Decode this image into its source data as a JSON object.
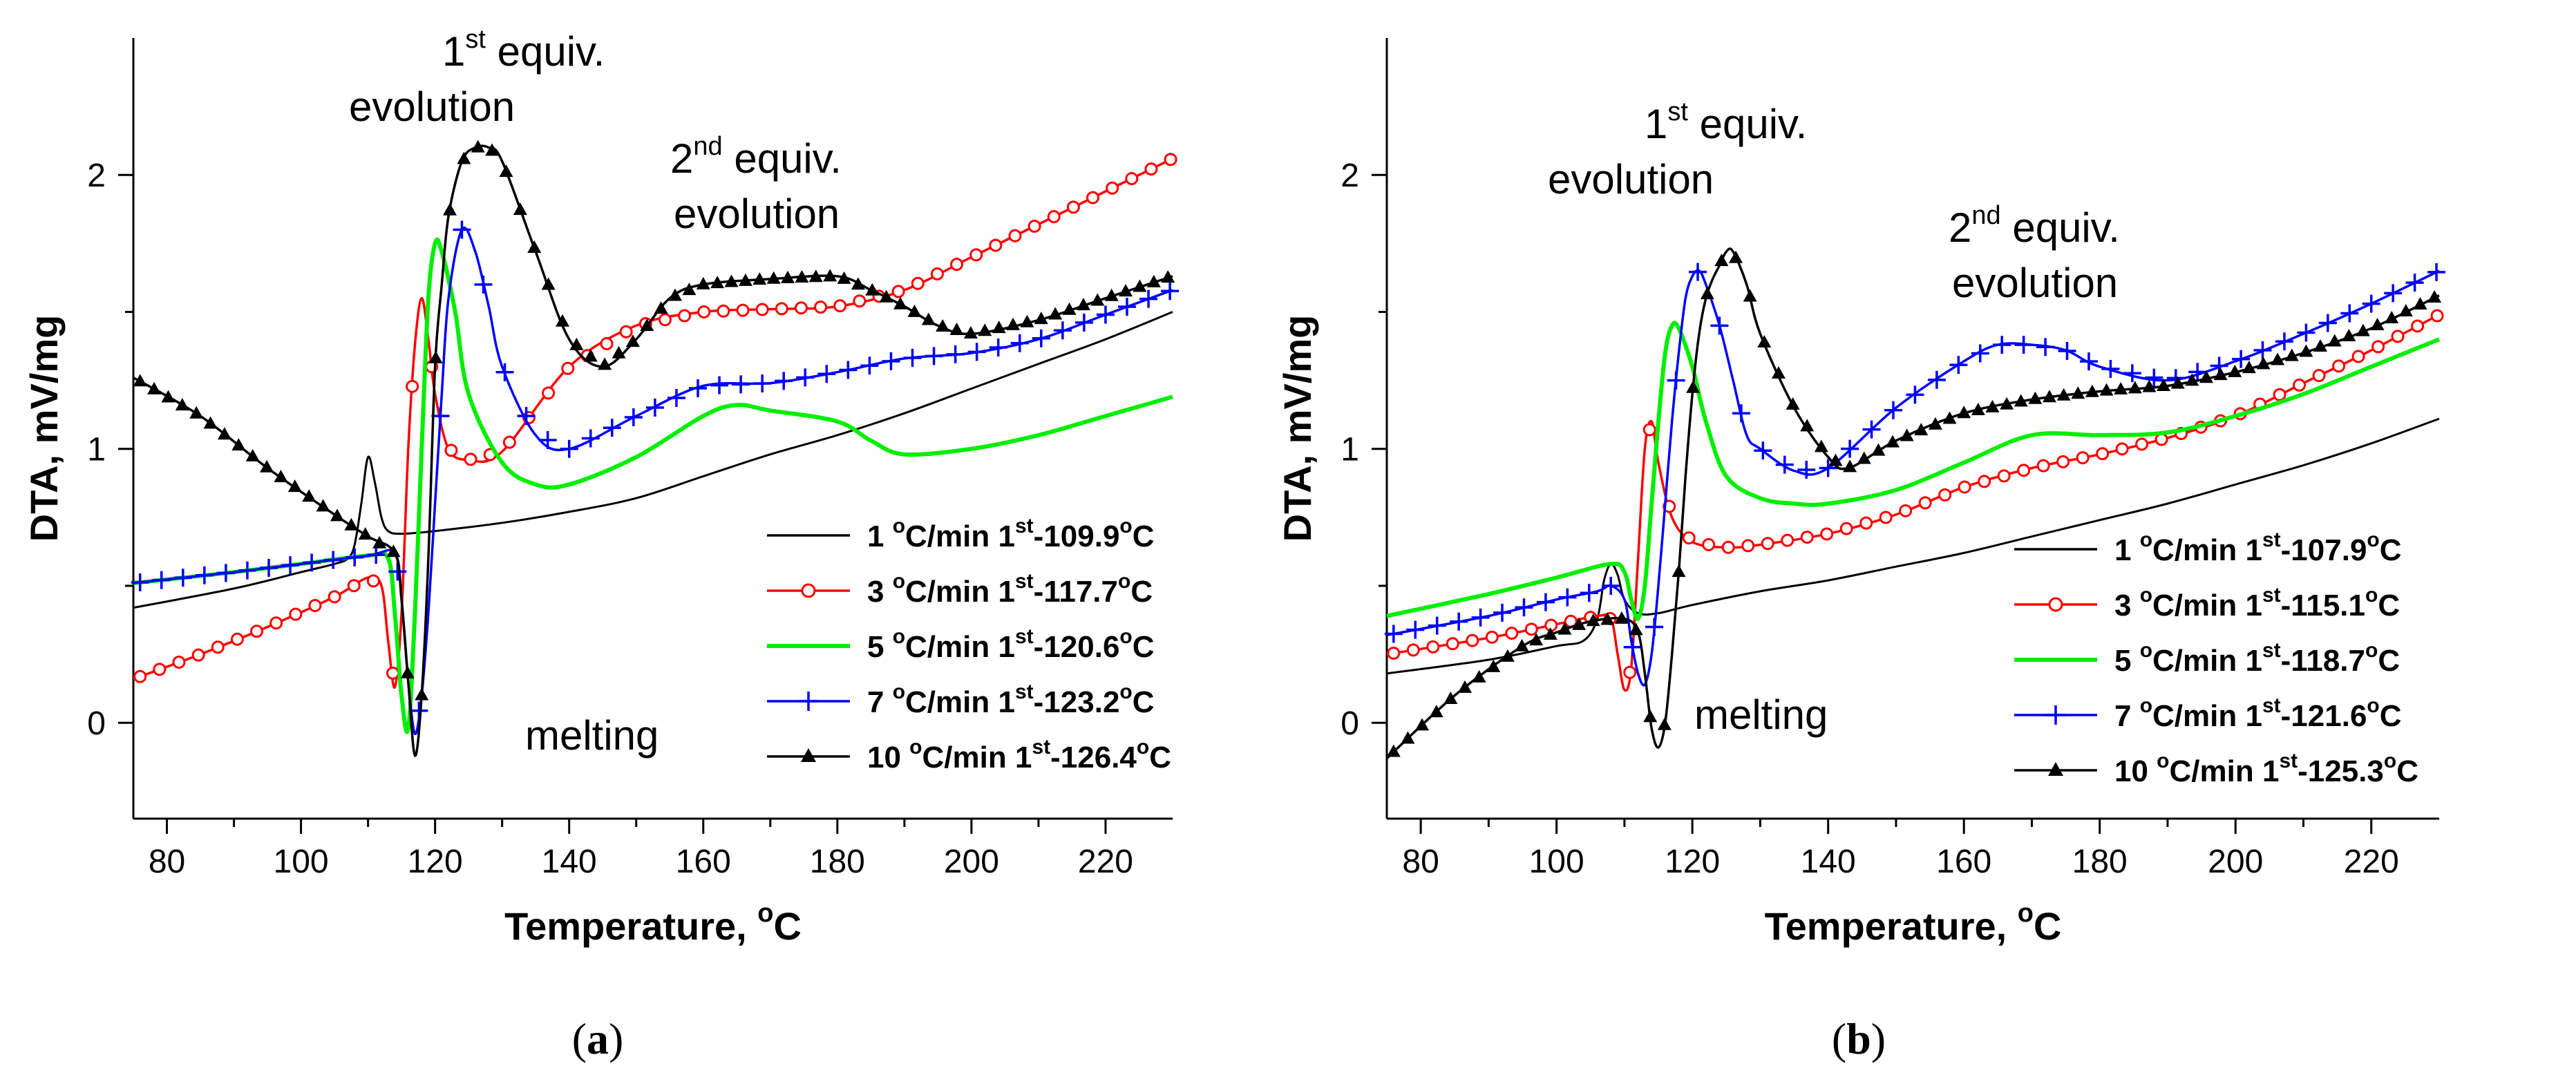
{
  "chart_data": [
    {
      "type": "line",
      "panel_label": "a",
      "xlabel": "Temperature, ",
      "xlabel_unit": "C",
      "ylabel": "DTA, mV/mg",
      "xlim": [
        75,
        230
      ],
      "ylim": [
        -0.35,
        2.5
      ],
      "xticks": [
        "80",
        "100",
        "120",
        "140",
        "160",
        "180",
        "200",
        "220"
      ],
      "yticks": [
        "0",
        "1",
        "2"
      ],
      "annotations": [
        {
          "line1_base": "1",
          "line1_sup": "st",
          "line1_rest": " equiv.",
          "line2": "evolution"
        },
        {
          "line1_base": "2",
          "line1_sup": "nd",
          "line1_rest": " equiv.",
          "line2": "evolution"
        },
        {
          "line1_base": "melting"
        }
      ],
      "series": [
        {
          "name": "1 °C/min",
          "rate": "1 ",
          "onset_prefix": "1",
          "onset_sup": "st",
          "onset": "-109.9",
          "color": "#000000",
          "marker": "none",
          "x": [
            75,
            90,
            100,
            105,
            107,
            108,
            109,
            110,
            111,
            112,
            113,
            115,
            120,
            130,
            140,
            150,
            160,
            170,
            180,
            190,
            200,
            210,
            220,
            230
          ],
          "y": [
            0.42,
            0.49,
            0.55,
            0.58,
            0.6,
            0.65,
            0.8,
            0.97,
            0.88,
            0.75,
            0.7,
            0.69,
            0.7,
            0.73,
            0.77,
            0.82,
            0.9,
            0.98,
            1.05,
            1.13,
            1.22,
            1.31,
            1.4,
            1.5
          ]
        },
        {
          "name": "3 °C/min",
          "rate": "3 ",
          "onset_prefix": "1",
          "onset_sup": "st",
          "onset": "-117.7",
          "color": "#ff0000",
          "marker": "circle",
          "x": [
            75,
            85,
            95,
            105,
            110,
            112,
            113,
            114,
            115,
            116,
            117,
            118,
            119,
            120,
            122,
            125,
            130,
            140,
            150,
            160,
            170,
            180,
            190,
            200,
            210,
            220,
            230
          ],
          "y": [
            0.16,
            0.25,
            0.35,
            0.46,
            0.53,
            0.5,
            0.3,
            0.13,
            0.4,
            1.0,
            1.38,
            1.55,
            1.4,
            1.2,
            1.0,
            0.96,
            0.99,
            1.3,
            1.45,
            1.5,
            1.51,
            1.52,
            1.58,
            1.7,
            1.82,
            1.94,
            2.06
          ]
        },
        {
          "name": "5 °C/min",
          "rate": "5 ",
          "onset_prefix": "1",
          "onset_sup": "st",
          "onset": "-120.6",
          "color": "#00ee00",
          "marker": "none",
          "x": [
            75,
            90,
            100,
            110,
            113,
            114,
            115,
            116,
            117,
            118,
            119,
            120,
            121,
            123,
            125,
            130,
            135,
            140,
            150,
            160,
            165,
            170,
            180,
            185,
            190,
            200,
            210,
            220,
            230
          ],
          "y": [
            0.51,
            0.55,
            0.58,
            0.61,
            0.6,
            0.4,
            0.1,
            -0.02,
            0.4,
            1.0,
            1.55,
            1.75,
            1.72,
            1.5,
            1.2,
            0.95,
            0.87,
            0.87,
            0.97,
            1.12,
            1.16,
            1.14,
            1.1,
            1.03,
            0.98,
            1.0,
            1.05,
            1.12,
            1.19
          ]
        },
        {
          "name": "7 °C/min",
          "rate": "7 ",
          "onset_prefix": "1",
          "onset_sup": "st",
          "onset": "-123.2",
          "color": "#0000ff",
          "marker": "plus",
          "x": [
            75,
            90,
            100,
            110,
            114,
            115,
            116,
            117,
            118,
            119,
            120,
            121,
            122,
            124,
            126,
            128,
            130,
            135,
            140,
            150,
            160,
            170,
            180,
            190,
            200,
            210,
            220,
            230
          ],
          "y": [
            0.51,
            0.55,
            0.58,
            0.61,
            0.62,
            0.45,
            0.15,
            -0.04,
            0.1,
            0.4,
            0.8,
            1.2,
            1.55,
            1.8,
            1.72,
            1.52,
            1.3,
            1.05,
            1.0,
            1.12,
            1.23,
            1.24,
            1.28,
            1.33,
            1.35,
            1.4,
            1.49,
            1.58
          ]
        },
        {
          "name": "10 °C/min",
          "rate": "10 ",
          "onset_prefix": "1",
          "onset_sup": "st",
          "onset": "-126.4",
          "color": "#000000",
          "marker": "triangle",
          "x": [
            75,
            85,
            95,
            105,
            110,
            114,
            115,
            116,
            117,
            118,
            119,
            120,
            121,
            122,
            124,
            126,
            128,
            130,
            135,
            140,
            145,
            150,
            155,
            160,
            170,
            180,
            185,
            190,
            195,
            200,
            210,
            220,
            230
          ],
          "y": [
            1.26,
            1.12,
            0.93,
            0.76,
            0.68,
            0.62,
            0.45,
            0.15,
            -0.12,
            0.1,
            0.6,
            1.3,
            1.6,
            1.85,
            2.05,
            2.1,
            2.1,
            2.05,
            1.72,
            1.4,
            1.3,
            1.4,
            1.55,
            1.6,
            1.62,
            1.63,
            1.58,
            1.52,
            1.45,
            1.42,
            1.47,
            1.55,
            1.63
          ]
        }
      ]
    },
    {
      "type": "line",
      "panel_label": "b",
      "xlabel": "Temperature, ",
      "xlabel_unit": "C",
      "ylabel": "DTA, mV/mg",
      "xlim": [
        75,
        230
      ],
      "ylim": [
        -0.35,
        2.5
      ],
      "xticks": [
        "80",
        "100",
        "120",
        "140",
        "160",
        "180",
        "200",
        "220"
      ],
      "yticks": [
        "0",
        "1",
        "2"
      ],
      "annotations": [
        {
          "line1_base": "1",
          "line1_sup": "st",
          "line1_rest": " equiv.",
          "line2": "evolution"
        },
        {
          "line1_base": "2",
          "line1_sup": "nd",
          "line1_rest": " equiv.",
          "line2": "evolution"
        },
        {
          "line1_base": "melting"
        }
      ],
      "series": [
        {
          "name": "1 °C/min",
          "rate": "1 ",
          "onset_prefix": "1",
          "onset_sup": "st",
          "onset": "-107.9",
          "color": "#000000",
          "marker": "none",
          "x": [
            75,
            90,
            100,
            104,
            106,
            107,
            108,
            109,
            110,
            112,
            115,
            120,
            130,
            140,
            150,
            160,
            170,
            180,
            190,
            200,
            210,
            220,
            230
          ],
          "y": [
            0.18,
            0.23,
            0.28,
            0.3,
            0.38,
            0.52,
            0.58,
            0.54,
            0.45,
            0.4,
            0.4,
            0.43,
            0.48,
            0.52,
            0.57,
            0.62,
            0.68,
            0.74,
            0.8,
            0.87,
            0.94,
            1.02,
            1.11
          ]
        },
        {
          "name": "3 °C/min",
          "rate": "3 ",
          "onset_prefix": "1",
          "onset_sup": "st",
          "onset": "-115.1",
          "color": "#ff0000",
          "marker": "circle",
          "x": [
            75,
            90,
            100,
            106,
            108,
            109,
            110,
            111,
            112,
            113,
            114,
            115,
            117,
            120,
            125,
            130,
            140,
            150,
            160,
            170,
            180,
            190,
            200,
            210,
            220,
            230
          ],
          "y": [
            0.25,
            0.31,
            0.36,
            0.39,
            0.38,
            0.25,
            0.12,
            0.2,
            0.6,
            1.0,
            1.1,
            0.95,
            0.75,
            0.66,
            0.64,
            0.65,
            0.69,
            0.76,
            0.86,
            0.93,
            0.98,
            1.04,
            1.12,
            1.24,
            1.36,
            1.49
          ]
        },
        {
          "name": "5 °C/min",
          "rate": "5 ",
          "onset_prefix": "1",
          "onset_sup": "st",
          "onset": "-118.7",
          "color": "#00ee00",
          "marker": "none",
          "x": [
            75,
            90,
            100,
            108,
            110,
            111,
            112,
            113,
            114,
            115,
            116,
            117,
            118,
            120,
            122,
            125,
            130,
            135,
            140,
            150,
            160,
            170,
            180,
            190,
            200,
            210,
            220,
            230
          ],
          "y": [
            0.39,
            0.47,
            0.53,
            0.58,
            0.55,
            0.45,
            0.38,
            0.5,
            0.8,
            1.1,
            1.35,
            1.45,
            1.44,
            1.3,
            1.1,
            0.9,
            0.82,
            0.8,
            0.8,
            0.85,
            0.95,
            1.05,
            1.05,
            1.06,
            1.12,
            1.2,
            1.3,
            1.4
          ]
        },
        {
          "name": "7 °C/min",
          "rate": "7 ",
          "onset_prefix": "1",
          "onset_sup": "st",
          "onset": "-121.6",
          "color": "#0000ff",
          "marker": "plus",
          "x": [
            75,
            90,
            100,
            106,
            108,
            110,
            111,
            112,
            113,
            114,
            115,
            116,
            117,
            118,
            119,
            120,
            121,
            122,
            124,
            126,
            128,
            130,
            135,
            140,
            150,
            160,
            165,
            170,
            175,
            180,
            190,
            200,
            210,
            220,
            230
          ],
          "y": [
            0.32,
            0.39,
            0.45,
            0.48,
            0.5,
            0.45,
            0.3,
            0.18,
            0.14,
            0.25,
            0.5,
            0.8,
            1.1,
            1.35,
            1.55,
            1.63,
            1.65,
            1.6,
            1.45,
            1.25,
            1.05,
            1.0,
            0.92,
            0.93,
            1.15,
            1.32,
            1.38,
            1.38,
            1.36,
            1.3,
            1.25,
            1.32,
            1.42,
            1.53,
            1.65
          ]
        },
        {
          "name": "10 °C/min",
          "rate": "10 ",
          "onset_prefix": "1",
          "onset_sup": "st",
          "onset": "-125.3",
          "color": "#000000",
          "marker": "triangle",
          "x": [
            75,
            85,
            95,
            100,
            105,
            110,
            112,
            113,
            114,
            115,
            116,
            117,
            118,
            119,
            120,
            121,
            122,
            123,
            124,
            125,
            126,
            128,
            130,
            135,
            140,
            143,
            150,
            160,
            170,
            180,
            190,
            200,
            210,
            220,
            230
          ],
          "y": [
            -0.13,
            0.1,
            0.28,
            0.33,
            0.37,
            0.38,
            0.33,
            0.18,
            -0.02,
            -0.09,
            0.0,
            0.25,
            0.55,
            0.9,
            1.2,
            1.42,
            1.55,
            1.62,
            1.67,
            1.72,
            1.72,
            1.6,
            1.42,
            1.15,
            0.97,
            0.93,
            1.03,
            1.13,
            1.18,
            1.21,
            1.23,
            1.28,
            1.35,
            1.44,
            1.56
          ]
        }
      ]
    }
  ]
}
